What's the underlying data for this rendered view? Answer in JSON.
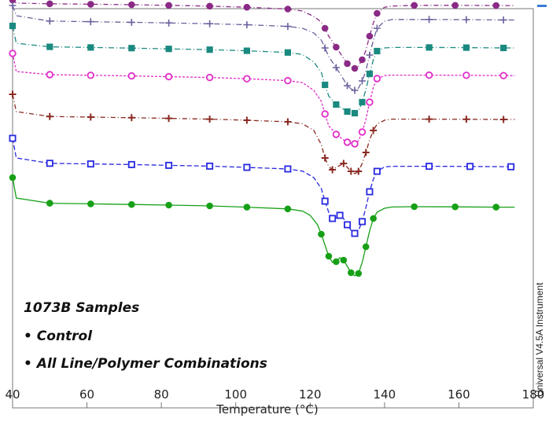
{
  "chart_data": {
    "type": "line",
    "xlabel": "Temperature (°C)",
    "ylabel": "",
    "xlim": [
      40,
      180
    ],
    "xticks": [
      40,
      60,
      80,
      100,
      120,
      140,
      160,
      180
    ],
    "grid": false,
    "annotations": [
      "1073B Samples",
      "• Control",
      "• All Line/Polymer Combinations"
    ],
    "instrument_label": "Universal V4.5A Instrument",
    "series": [
      {
        "color": "#8a2a86",
        "marker": "circle-filled",
        "dash": "6,3,1,3",
        "x": [
          40,
          41,
          50,
          61,
          72,
          82,
          93,
          103,
          114,
          118,
          121,
          123,
          124,
          125,
          127,
          129,
          130,
          131,
          132,
          133,
          134,
          135,
          136,
          137,
          138,
          140,
          142,
          148,
          159,
          170,
          175
        ],
        "y": [
          8,
          4,
          3.2,
          2.6,
          2,
          1.2,
          0.2,
          -1.2,
          -3.5,
          -6.0,
          -13,
          -20,
          -28,
          -38,
          -52,
          -66,
          -73,
          -77,
          -79,
          -76,
          -68,
          -56,
          -38,
          -21,
          -9,
          -1.2,
          0.3,
          1.2,
          1.2,
          1.0,
          0.8
        ]
      },
      {
        "color": "#6a5f9c",
        "marker": "cross",
        "dash": "7,3,1,3",
        "x": [
          40,
          41,
          50,
          61,
          72,
          82,
          93,
          103,
          114,
          118,
          121,
          123,
          124,
          125,
          127,
          129,
          130,
          131,
          132,
          133,
          134,
          135,
          136,
          137,
          138,
          140,
          142,
          152,
          162,
          172,
          175
        ],
        "y": [
          1,
          -12,
          -18.8,
          -19.6,
          -20.4,
          -21.2,
          -22.2,
          -23.5,
          -25.6,
          -28.0,
          -34,
          -43,
          -53,
          -64,
          -78,
          -93,
          -101,
          -105,
          -107,
          -104,
          -95,
          -82,
          -62,
          -43,
          -28,
          -19,
          -16.8,
          -16.8,
          -17.0,
          -17.4,
          -17.4
        ]
      },
      {
        "color": "#1a8a80",
        "marker": "square-filled",
        "dash": "7,3,1,3",
        "x": [
          40,
          41,
          50,
          61,
          72,
          82,
          93,
          103,
          114,
          118,
          121,
          123,
          124,
          125,
          127,
          129,
          130,
          131,
          132,
          133,
          134,
          135,
          136,
          137,
          138,
          140,
          142,
          152,
          162,
          172,
          175
        ],
        "y": [
          -25,
          -47,
          -51.6,
          -52.4,
          -53.2,
          -54.2,
          -55.2,
          -56.6,
          -58.8,
          -61.4,
          -71,
          -84,
          -100,
          -114,
          -125,
          -131,
          -134,
          -135,
          -136,
          -133,
          -122,
          -106,
          -86,
          -68,
          -57,
          -53.0,
          -52.4,
          -52.4,
          -52.6,
          -53.0,
          -53.0
        ]
      },
      {
        "color": "#e02ec8",
        "marker": "circle-open",
        "dash": "3,2",
        "x": [
          40,
          41,
          50,
          61,
          72,
          82,
          93,
          103,
          114,
          118,
          121,
          123,
          124,
          125,
          127,
          129,
          130,
          131,
          132,
          133,
          134,
          135,
          136,
          137,
          138,
          140,
          142,
          152,
          162,
          172,
          175
        ],
        "y": [
          -60,
          -83,
          -87.0,
          -87.8,
          -88.6,
          -89.6,
          -90.6,
          -92.2,
          -94.6,
          -97.2,
          -107,
          -121,
          -137,
          -152,
          -163,
          -170,
          -173,
          -174,
          -175,
          -171,
          -160,
          -144,
          -122,
          -103,
          -92,
          -88.2,
          -87.6,
          -87.6,
          -87.8,
          -88.2,
          -88.2
        ]
      },
      {
        "color": "#8a2a22",
        "marker": "plus",
        "dash": "6,3,1,3",
        "x": [
          40,
          41,
          50,
          61,
          72,
          82,
          93,
          103,
          114,
          118,
          121,
          123,
          124,
          125,
          126,
          127,
          129,
          130,
          131,
          132,
          133,
          134,
          135,
          136,
          137,
          138,
          140,
          142,
          152,
          162,
          172,
          175
        ],
        "y": [
          -112,
          -134,
          -140.2,
          -141.0,
          -141.8,
          -142.6,
          -143.6,
          -145.0,
          -147.0,
          -149.6,
          -158,
          -176,
          -193,
          -204,
          -208,
          -205,
          -200,
          -205,
          -210,
          -213,
          -210,
          -200,
          -186,
          -170,
          -158,
          -150,
          -145.0,
          -143.6,
          -143.6,
          -143.8,
          -144.0,
          -144.0
        ]
      },
      {
        "color": "#2828e0",
        "marker": "square-open",
        "dash": "6,3",
        "x": [
          40,
          41,
          50,
          61,
          72,
          82,
          93,
          103,
          114,
          118,
          121,
          123,
          124,
          125,
          126,
          127,
          128,
          129,
          130,
          131,
          132,
          133,
          134,
          135,
          136,
          137,
          138,
          140,
          142,
          152,
          163,
          174,
          175
        ],
        "y": [
          -168,
          -193,
          -199.8,
          -200.6,
          -201.4,
          -202.4,
          -203.4,
          -205.0,
          -207.0,
          -209.8,
          -218,
          -232,
          -248,
          -262,
          -270,
          -269,
          -266,
          -270,
          -278,
          -285,
          -289,
          -285,
          -274,
          -256,
          -236,
          -220,
          -210,
          -204.4,
          -203.6,
          -203.6,
          -203.8,
          -204.2,
          -204.2
        ]
      },
      {
        "color": "#17a017",
        "marker": "circle-filled",
        "dash": "none",
        "x": [
          40,
          41,
          50,
          61,
          72,
          82,
          93,
          103,
          114,
          118,
          120,
          122,
          123,
          124,
          125,
          126,
          127,
          128,
          129,
          130,
          131,
          132,
          133,
          134,
          135,
          136,
          137,
          138,
          140,
          142,
          148,
          159,
          170,
          175
        ],
        "y": [
          -218,
          -244,
          -250.6,
          -251.4,
          -252.2,
          -253.0,
          -254.0,
          -255.6,
          -257.8,
          -260.6,
          -266,
          -278,
          -290,
          -304,
          -318,
          -326,
          -325,
          -320,
          -323,
          -331,
          -339,
          -343,
          -340,
          -326,
          -306,
          -286,
          -270,
          -262,
          -257.0,
          -255.4,
          -255.0,
          -255.2,
          -255.6,
          -255.6
        ]
      }
    ]
  }
}
